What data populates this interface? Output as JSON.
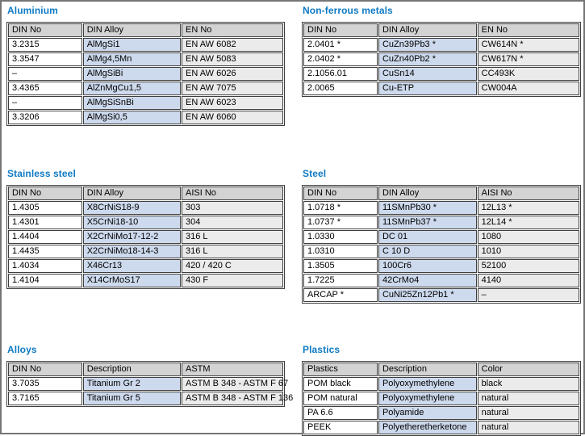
{
  "colors": {
    "title": "#0e7ac4",
    "header_bg": "#d3d3d3",
    "alloy_col_bg": "#cdd9ec",
    "right_col_bg": "#ebebeb",
    "grid_line": "#3f3f3f",
    "page_border": "#757575",
    "text": "#000000"
  },
  "sections": [
    {
      "title": "Aluminium",
      "headers": [
        "DIN No",
        "DIN Alloy",
        "EN No"
      ],
      "rows": [
        [
          "3.2315",
          "AlMgSi1",
          "EN AW 6082"
        ],
        [
          "3.3547",
          "AlMg4,5Mn",
          "EN AW 5083"
        ],
        [
          "–",
          "AlMgSiBi",
          "EN AW 6026"
        ],
        [
          "3.4365",
          "AlZnMgCu1,5",
          "EN AW 7075"
        ],
        [
          "–",
          "AlMgSiSnBi",
          "EN AW 6023"
        ],
        [
          "3.3206",
          "AlMgSi0,5",
          "EN AW 6060"
        ]
      ]
    },
    {
      "title": "Non-ferrous metals",
      "headers": [
        "DIN No",
        "DIN Alloy",
        "EN No"
      ],
      "rows": [
        [
          "2.0401 *",
          "CuZn39Pb3 *",
          "CW614N *"
        ],
        [
          "2.0402 *",
          "CuZn40Pb2 *",
          "CW617N *"
        ],
        [
          "2.1056.01",
          "CuSn14",
          "CC493K"
        ],
        [
          "2.0065",
          "Cu-ETP",
          "CW004A"
        ]
      ]
    },
    {
      "title": "Stainless steel",
      "headers": [
        "DIN No",
        "DIN Alloy",
        "AISI No"
      ],
      "rows": [
        [
          "1.4305",
          "X8CrNiS18-9",
          "303"
        ],
        [
          "1.4301",
          "X5CrNi18-10",
          "304"
        ],
        [
          "1.4404",
          "X2CrNiMo17-12-2",
          "316 L"
        ],
        [
          "1.4435",
          "X2CrNiMo18-14-3",
          "316 L"
        ],
        [
          "1.4034",
          "X46Cr13",
          "420 / 420 C"
        ],
        [
          "1.4104",
          "X14CrMoS17",
          "430 F"
        ]
      ]
    },
    {
      "title": "Steel",
      "headers": [
        "DIN No",
        "DIN Alloy",
        "AISI No"
      ],
      "rows": [
        [
          "1.0718 *",
          "11SMnPb30 *",
          "12L13 *"
        ],
        [
          "1.0737 *",
          "11SMnPb37 *",
          "12L14 *"
        ],
        [
          "1.0330",
          "DC 01",
          "1080"
        ],
        [
          "1.0310",
          "C 10 D",
          "1010"
        ],
        [
          "1.3505",
          "100Cr6",
          "52100"
        ],
        [
          "1.7225",
          "42CrMo4",
          "4140"
        ],
        [
          "ARCAP *",
          "CuNi25Zn12Pb1 *",
          "–"
        ]
      ]
    },
    {
      "title": "Alloys",
      "headers": [
        "DIN No",
        "Description",
        "ASTM"
      ],
      "rows": [
        [
          "3.7035",
          "Titanium Gr 2",
          "ASTM B 348 - ASTM F 67"
        ],
        [
          "3.7165",
          "Titanium Gr 5",
          "ASTM B 348 - ASTM F 136"
        ]
      ]
    },
    {
      "title": "Plastics",
      "headers": [
        "Plastics",
        "Description",
        "Color"
      ],
      "rows": [
        [
          "POM black",
          "Polyoxymethylene",
          "black"
        ],
        [
          "POM natural",
          "Polyoxymethylene",
          "natural"
        ],
        [
          "PA 6.6",
          "Polyamide",
          "natural"
        ],
        [
          "PEEK",
          "Polyetheretherketone",
          "natural"
        ]
      ]
    }
  ]
}
